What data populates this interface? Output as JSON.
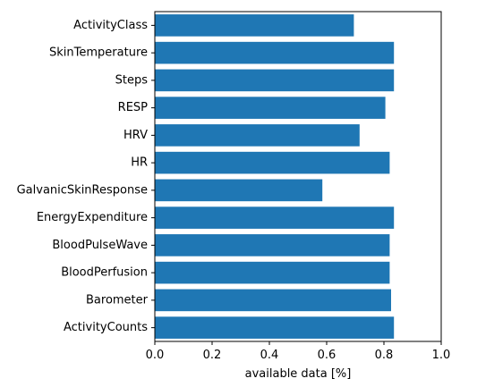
{
  "chart_data": {
    "type": "bar",
    "orientation": "horizontal",
    "categories": [
      "ActivityClass",
      "SkinTemperature",
      "Steps",
      "RESP",
      "HRV",
      "HR",
      "GalvanicSkinResponse",
      "EnergyExpenditure",
      "BloodPulseWave",
      "BloodPerfusion",
      "Barometer",
      "ActivityCounts"
    ],
    "values": [
      0.695,
      0.835,
      0.835,
      0.805,
      0.715,
      0.82,
      0.585,
      0.835,
      0.82,
      0.82,
      0.825,
      0.835
    ],
    "xlabel": "available data [%]",
    "ylabel": "",
    "title": "",
    "xlim": [
      0,
      1
    ],
    "xticks": [
      "0.0",
      "0.2",
      "0.4",
      "0.6",
      "0.8",
      "1.0"
    ],
    "bar_color": "#1f77b4",
    "grid": false,
    "legend": false
  }
}
